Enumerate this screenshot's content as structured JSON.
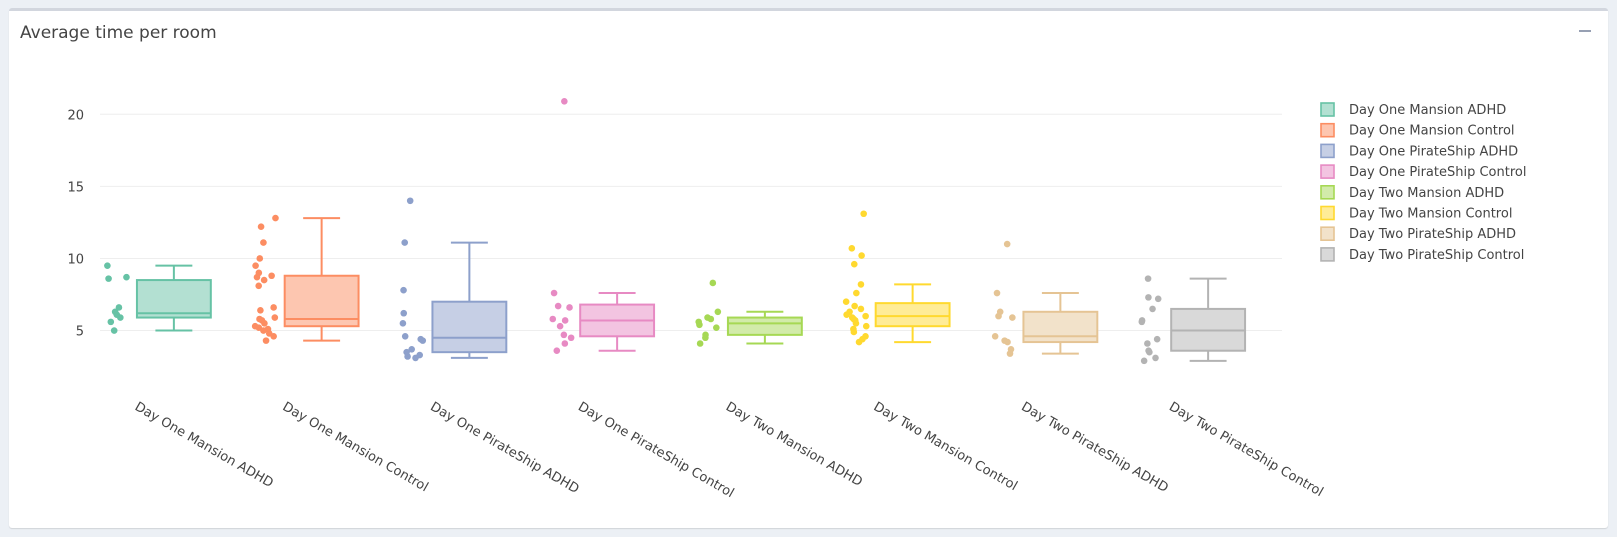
{
  "panel": {
    "title": "Average time per room",
    "collapse_icon": "minus-icon"
  },
  "chart_data": {
    "type": "box",
    "title": "",
    "xlabel": "",
    "ylabel": "",
    "ylim": [
      1.5,
      23
    ],
    "yticks": [
      5,
      10,
      15,
      20
    ],
    "grid": true,
    "legend_position": "right",
    "categories": [
      "Day One Mansion ADHD",
      "Day One Mansion Control",
      "Day One PirateShip ADHD",
      "Day One PirateShip Control",
      "Day Two Mansion ADHD",
      "Day Two Mansion Control",
      "Day Two PirateShip ADHD",
      "Day Two PirateShip Control"
    ],
    "series": [
      {
        "name": "Day One Mansion ADHD",
        "color": "#66c2a5",
        "fill": "#b3e0d2",
        "min": 5.0,
        "q1": 5.9,
        "median": 6.2,
        "q3": 8.5,
        "max": 9.5,
        "points": [
          9.5,
          8.7,
          8.6,
          6.6,
          6.3,
          6.1,
          5.9,
          5.6,
          5.0
        ]
      },
      {
        "name": "Day One Mansion Control",
        "color": "#fc8d62",
        "fill": "#fdc6b0",
        "min": 4.3,
        "q1": 5.3,
        "median": 5.8,
        "q3": 8.8,
        "max": 12.8,
        "points": [
          12.8,
          12.2,
          11.1,
          10.0,
          9.5,
          9.0,
          8.8,
          8.7,
          8.5,
          8.1,
          6.6,
          6.4,
          5.9,
          5.8,
          5.7,
          5.5,
          5.3,
          5.2,
          5.1,
          5.0,
          4.8,
          4.6,
          4.3
        ]
      },
      {
        "name": "Day One PirateShip ADHD",
        "color": "#8da0cb",
        "fill": "#c6cfe5",
        "min": 3.1,
        "q1": 3.5,
        "median": 4.5,
        "q3": 7.0,
        "max": 11.1,
        "points": [
          14.0,
          11.1,
          7.8,
          6.2,
          5.5,
          4.6,
          4.4,
          4.3,
          3.7,
          3.5,
          3.3,
          3.2,
          3.1
        ]
      },
      {
        "name": "Day One PirateShip Control",
        "color": "#e78ac3",
        "fill": "#f3c4e1",
        "min": 3.6,
        "q1": 4.6,
        "median": 5.7,
        "q3": 6.8,
        "max": 7.6,
        "points": [
          20.9,
          7.6,
          6.7,
          6.6,
          5.8,
          5.7,
          5.3,
          4.7,
          4.5,
          4.1,
          3.6
        ]
      },
      {
        "name": "Day Two Mansion ADHD",
        "color": "#a6d854",
        "fill": "#d2ebaa",
        "min": 4.1,
        "q1": 4.7,
        "median": 5.5,
        "q3": 5.9,
        "max": 6.3,
        "points": [
          8.3,
          6.3,
          5.9,
          5.8,
          5.6,
          5.4,
          5.2,
          4.7,
          4.5,
          4.1
        ]
      },
      {
        "name": "Day Two Mansion Control",
        "color": "#ffd92f",
        "fill": "#ffec97",
        "min": 4.2,
        "q1": 5.3,
        "median": 6.0,
        "q3": 6.9,
        "max": 8.2,
        "points": [
          13.1,
          10.7,
          10.2,
          9.6,
          8.2,
          7.6,
          7.0,
          6.7,
          6.5,
          6.3,
          6.1,
          6.0,
          5.9,
          5.8,
          5.7,
          5.5,
          5.3,
          5.1,
          4.9,
          4.6,
          4.4,
          4.2
        ]
      },
      {
        "name": "Day Two PirateShip ADHD",
        "color": "#e5c494",
        "fill": "#f2e2ca",
        "min": 3.4,
        "q1": 4.2,
        "median": 4.6,
        "q3": 6.3,
        "max": 7.6,
        "points": [
          11.0,
          7.6,
          6.3,
          6.0,
          5.9,
          4.6,
          4.3,
          4.2,
          3.7,
          3.4
        ]
      },
      {
        "name": "Day Two PirateShip Control",
        "color": "#b3b3b3",
        "fill": "#d9d9d9",
        "min": 2.9,
        "q1": 3.6,
        "median": 5.0,
        "q3": 6.5,
        "max": 8.6,
        "points": [
          8.6,
          7.3,
          7.2,
          6.5,
          5.7,
          5.6,
          4.4,
          4.1,
          3.6,
          3.5,
          3.1,
          2.9
        ]
      }
    ]
  }
}
